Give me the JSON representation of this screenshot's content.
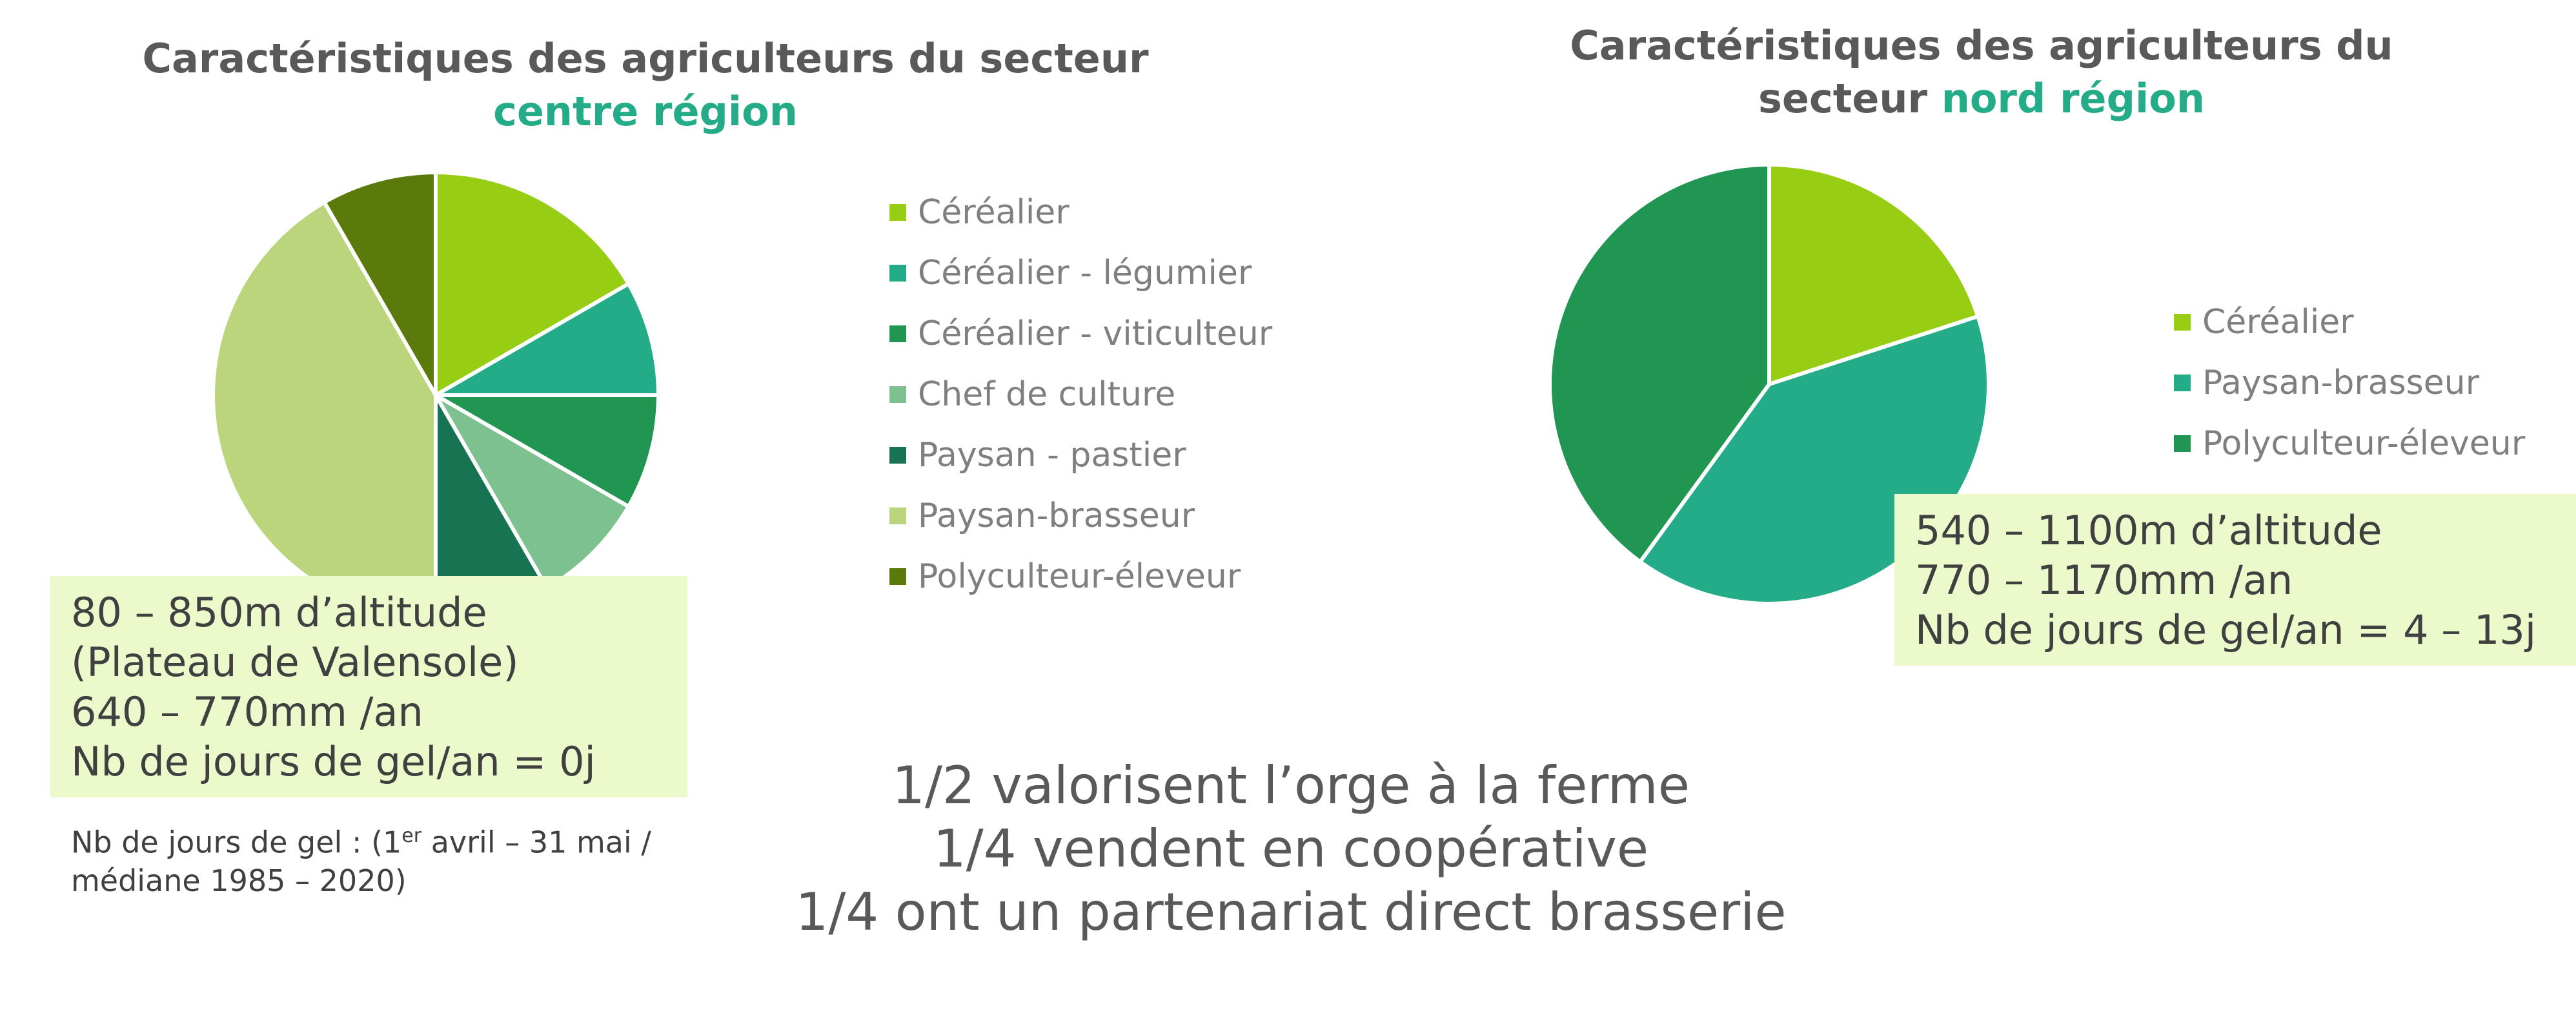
{
  "colors": {
    "title_highlight": "#24AB88",
    "text": "#595959",
    "legend_text": "#7f7f7f",
    "infobox_bg": "#EBF9CB"
  },
  "left": {
    "title_line1": "Caractéristiques des agriculteurs du secteur",
    "title_highlight": "centre région",
    "info_lines": [
      "80 – 850m d’altitude",
      "(Plateau de Valensole)",
      "640 – 770mm /an",
      "Nb de jours de gel/an = 0j"
    ],
    "footnote_part1": "Nb de jours de gel : (1",
    "footnote_sup": "er",
    "footnote_part2": " avril – 31 mai /",
    "footnote_line2": "médiane 1985 – 2020)"
  },
  "right": {
    "title_line1": "Caractéristiques des agriculteurs du",
    "title_prefix": "secteur ",
    "title_highlight": "nord région",
    "info_lines": [
      "540 – 1100m d’altitude",
      "770 – 1170mm /an",
      "Nb de jours de gel/an = 4 – 13j"
    ]
  },
  "conclusion": [
    "1/2 valorisent l’orge à la ferme",
    "1/4 vendent en coopérative",
    "1/4 ont un partenariat direct brasserie"
  ],
  "chart_data": [
    {
      "type": "pie",
      "title": "Caractéristiques des agriculteurs du secteur centre région",
      "legend_position": "right",
      "categories": [
        "Céréalier",
        "Céréalier - légumier",
        "Céréalier - viticulteur",
        "Chef de culture",
        "Paysan - pastier",
        "Paysan-brasseur",
        "Polyculteur-éleveur"
      ],
      "values": [
        2,
        1,
        1,
        1,
        1,
        5,
        1
      ],
      "colors": [
        "#97CD12",
        "#24AB88",
        "#219552",
        "#7DC191",
        "#177352",
        "#BAD57C",
        "#5A7A0C"
      ]
    },
    {
      "type": "pie",
      "title": "Caractéristiques des agriculteurs du secteur nord région",
      "legend_position": "right",
      "categories": [
        "Céréalier",
        "Paysan-brasseur",
        "Polyculteur-éleveur"
      ],
      "values": [
        1,
        2,
        2
      ],
      "colors": [
        "#97CD12",
        "#24AB88",
        "#219552"
      ]
    }
  ]
}
